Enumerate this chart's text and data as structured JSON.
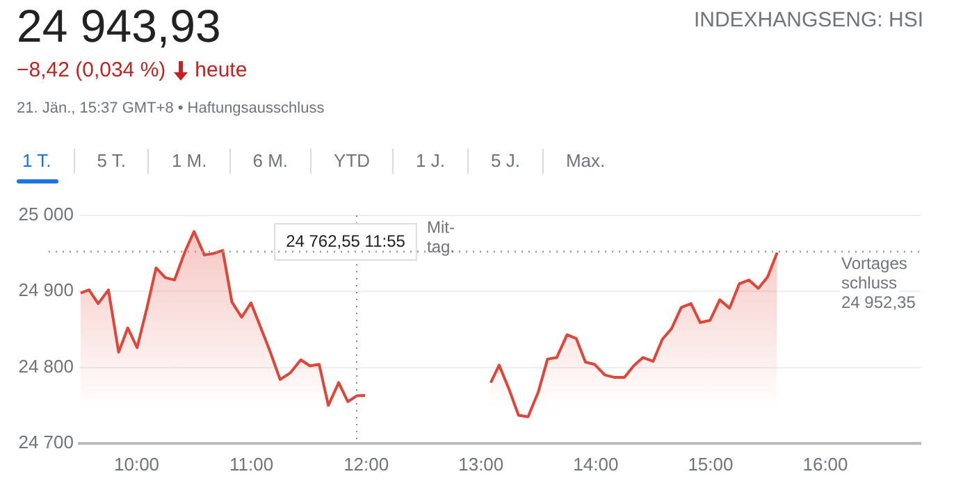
{
  "chart_data": {
    "type": "area",
    "title": "24 943,93",
    "subtitle": "−8,42 (0,034 %) heute",
    "annotations": [
      "INDEXHANGSENG: HSI",
      "21. Jän., 15:37 GMT+8 • Haftungsausschluss",
      "1 T.",
      "5 T.",
      "1 M.",
      "6 M.",
      "YTD",
      "1 J.",
      "5 J.",
      "Max.",
      "Mit-\ntag.",
      "24 762,55 11:55"
    ],
    "x": [
      9.512,
      9.585,
      9.665,
      9.754,
      9.843,
      9.923,
      10.004,
      10.089,
      10.169,
      10.25,
      10.33,
      10.42,
      10.5,
      10.59,
      10.67,
      10.75,
      10.83,
      10.915,
      10.996,
      11.085,
      11.165,
      11.25,
      11.34,
      11.43,
      11.51,
      11.59,
      11.67,
      11.76,
      11.84,
      11.917,
      11.99,
      12.5,
      13.085,
      13.158,
      13.24,
      13.327,
      13.41,
      13.5,
      13.58,
      13.66,
      13.75,
      13.83,
      13.91,
      13.99,
      14.08,
      14.16,
      14.25,
      14.33,
      14.41,
      14.5,
      14.58,
      14.66,
      14.745,
      14.83,
      14.91,
      14.996,
      15.08,
      15.166,
      15.25,
      15.335,
      15.416,
      15.497,
      15.58
    ],
    "series": [
      {
        "color": "#e0453a",
        "values": [
          24898,
          24902,
          24884,
          24902,
          24820,
          24852,
          24826,
          24878,
          24931,
          24918,
          24915,
          24952,
          24979,
          24948,
          24950,
          24954,
          24886,
          24866,
          24885,
          24851,
          24820,
          24784,
          24793,
          24810,
          24802,
          24804,
          24750,
          24780,
          24755,
          24762.55,
          24763,
          null,
          24780,
          24803,
          24773,
          24737,
          24735,
          24768,
          24811,
          24813,
          24843,
          24838,
          24807,
          24804,
          24790,
          24787,
          24787,
          24802,
          24813,
          24808,
          24837,
          24851,
          24879,
          24884,
          24859,
          24862,
          24889,
          24878,
          24910,
          24915,
          24904,
          24919,
          24951
        ]
      }
    ],
    "xlim": [
      9.5,
      16.83
    ],
    "xticks": [
      {
        "value": 10,
        "label": "10:00"
      },
      {
        "value": 11,
        "label": "11:00"
      },
      {
        "value": 12,
        "label": "12:00"
      },
      {
        "value": 13,
        "label": "13:00"
      },
      {
        "value": 14,
        "label": "14:00"
      },
      {
        "value": 15,
        "label": "15:00"
      },
      {
        "value": 16,
        "label": "16:00"
      }
    ],
    "ylim": [
      24700,
      25000
    ],
    "yticks": [
      {
        "value": 24700,
        "label": "24 700"
      },
      {
        "value": 24800,
        "label": "24 800"
      },
      {
        "value": 24900,
        "label": "24 900"
      },
      {
        "value": 25000,
        "label": "25 000"
      }
    ],
    "ref_lines": [
      {
        "axis": "x",
        "value": 11.917,
        "line_style": "dotted",
        "color": "#888888"
      },
      {
        "axis": "y",
        "value": 24952.35,
        "label": "Vortages\nschluss\n24 952,35",
        "line_style": "dotted",
        "color": "#9e9e9e"
      }
    ],
    "grid": "y",
    "legend": false,
    "marker": "none",
    "line_style": "solid"
  }
}
